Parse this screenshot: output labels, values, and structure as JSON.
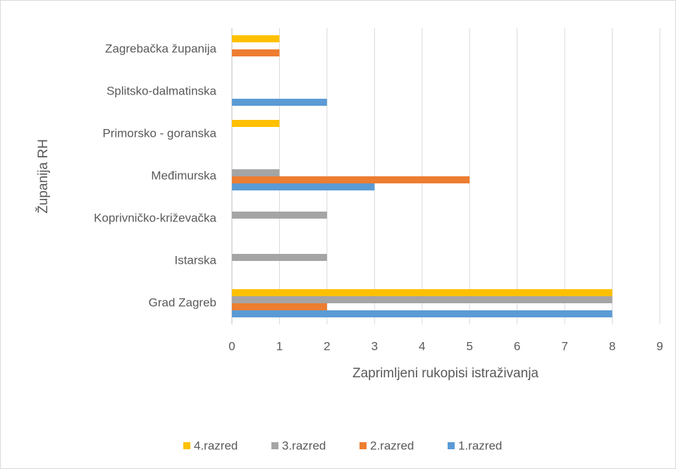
{
  "chart_data": {
    "type": "bar",
    "orientation": "horizontal",
    "x_label": "Zaprimljeni rukopisi istraživanja",
    "y_label": "Županija RH",
    "categories": [
      "Grad Zagreb",
      "Istarska",
      "Koprivničko-križevačka",
      "Međimurska",
      "Primorsko - goranska",
      "Splitsko-dalmatinska",
      "Zagrebačka županija"
    ],
    "series": [
      {
        "name": "1.razred",
        "color": "#5b9bd5",
        "values": [
          8,
          0,
          0,
          3,
          0,
          2,
          0
        ]
      },
      {
        "name": "2.razred",
        "color": "#ed7d31",
        "values": [
          2,
          0,
          0,
          5,
          0,
          0,
          1
        ]
      },
      {
        "name": "3.razred",
        "color": "#a5a5a5",
        "values": [
          8,
          2,
          2,
          1,
          0,
          0,
          0
        ]
      },
      {
        "name": "4.razred",
        "color": "#ffc000",
        "values": [
          8,
          0,
          0,
          0,
          1,
          0,
          1
        ]
      }
    ],
    "xlim": [
      0,
      9
    ],
    "xticks": [
      0,
      1,
      2,
      3,
      4,
      5,
      6,
      7,
      8,
      9
    ],
    "grid": true,
    "legend": "bottom"
  }
}
